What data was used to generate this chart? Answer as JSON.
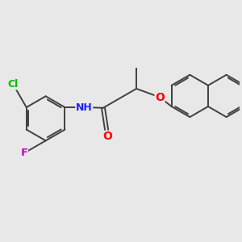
{
  "background_color": "#e8e8e8",
  "bond_color": "#404040",
  "atom_colors": {
    "Cl": "#00bb00",
    "F": "#cc00cc",
    "N": "#2020ff",
    "O": "#ff0000"
  },
  "figure_size": [
    3.0,
    3.0
  ],
  "dpi": 100,
  "lw": 1.4,
  "ring_r": 0.38,
  "font_size_atom": 9.5
}
